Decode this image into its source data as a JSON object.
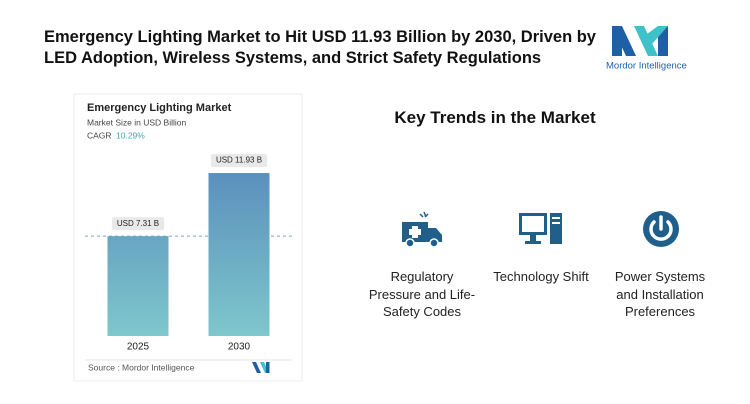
{
  "header": {
    "title": "Emergency Lighting Market to Hit USD 11.93 Billion by 2030, Driven by LED Adoption, Wireless Systems, and Strict Safety Regulations",
    "logo": "Mordor Intelligence"
  },
  "chart_data": {
    "type": "bar",
    "title": "Emergency Lighting Market",
    "subtitle": "Market Size in USD Billion",
    "cagr_label": "CAGR",
    "cagr": "10.29%",
    "categories": [
      "2025",
      "2030"
    ],
    "values": [
      7.31,
      11.93
    ],
    "value_labels": [
      "USD 7.31 B",
      "USD 11.93 B"
    ],
    "source": "Source : Mordor Intelligence"
  },
  "trends": {
    "title": "Key Trends in the Market",
    "items": [
      "Regulatory Pressure and Life-Safety Codes",
      "Technology Shift",
      "Power Systems and Installation Preferences"
    ]
  }
}
